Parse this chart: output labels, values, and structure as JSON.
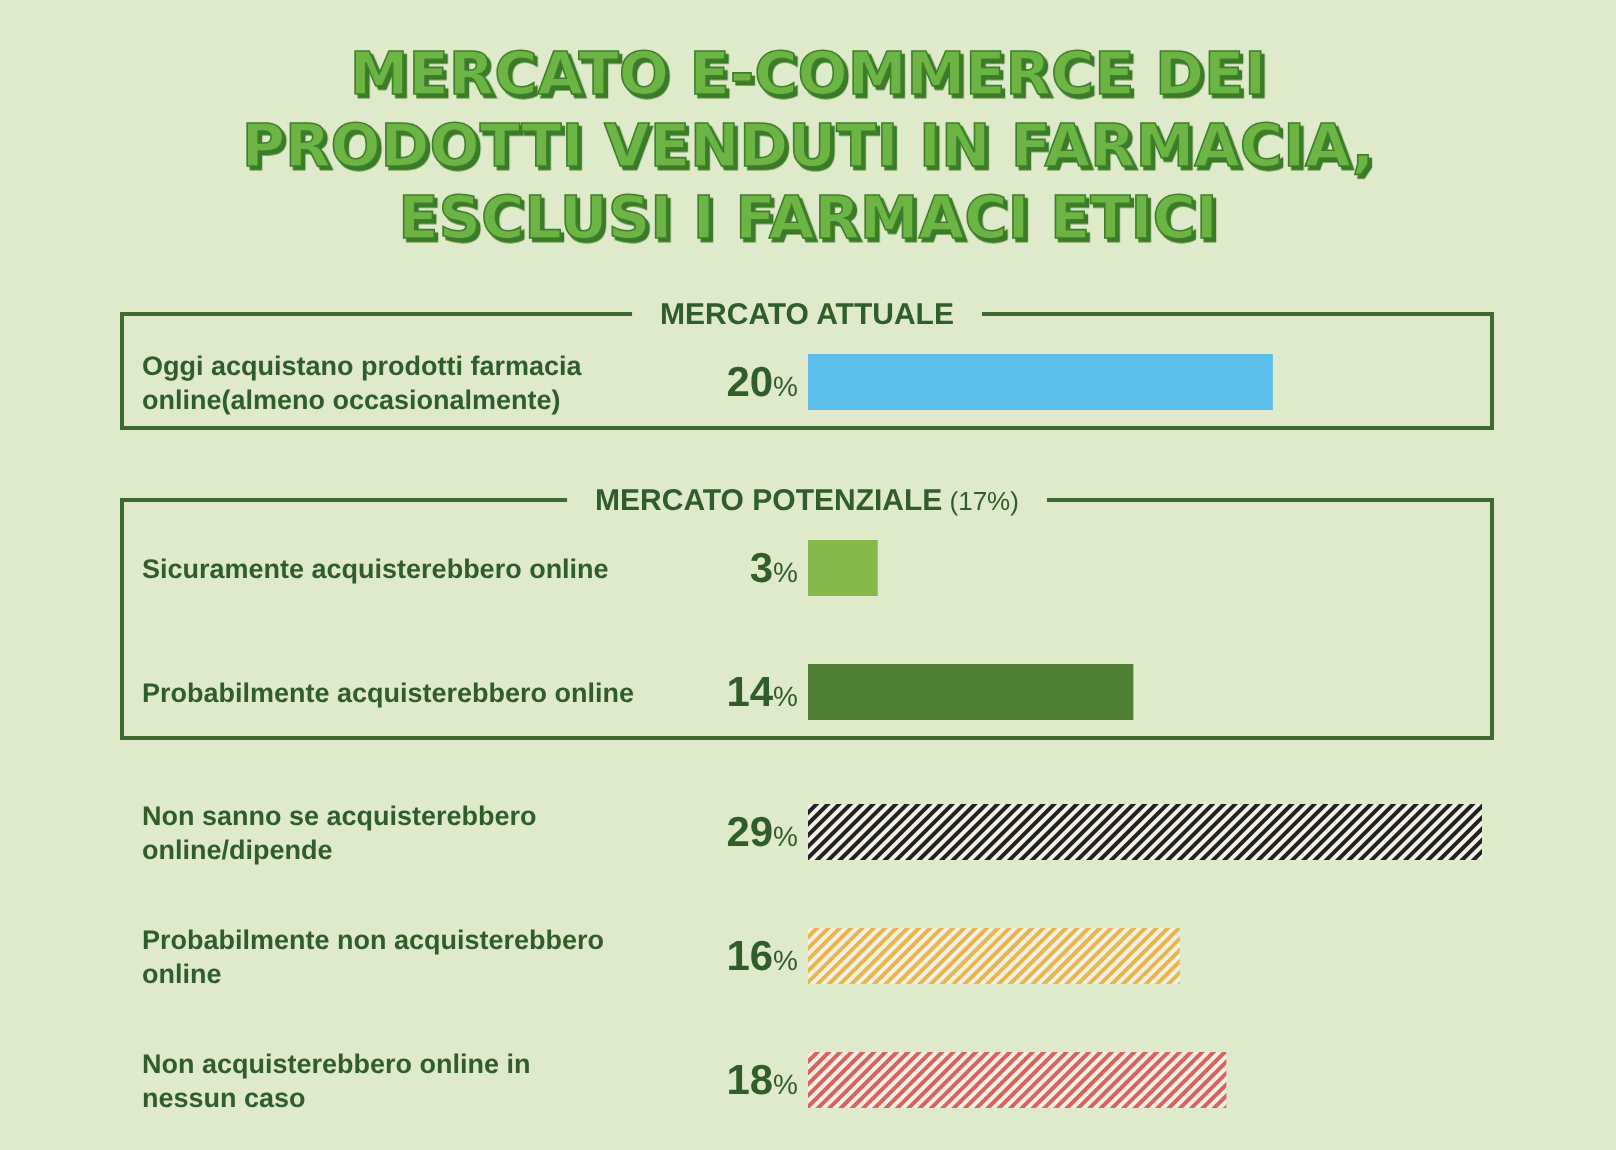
{
  "chart_data": {
    "type": "bar",
    "orientation": "horizontal",
    "title": "MERCATO E-COMMERCE DEI\nPRODOTTI VENDUTI IN FARMACIA,\nESCLUSI I FARMACI ETICI",
    "categories": [
      "Oggi acquistano prodotti farmacia\nonline(almeno occasionalmente)",
      "Sicuramente acquisterebbero online",
      "Probabilmente acquisterebbero online",
      "Non sanno se acquisterebbero\nonline/dipende",
      "Probabilmente non acquisterebbero\nonline",
      "Non acquisterebbero online in\nnessun caso"
    ],
    "values": [
      20,
      3,
      14,
      29,
      16,
      18
    ],
    "colors": [
      "#5bbde9",
      "#86b84c",
      "#4f7f35",
      "#222222",
      "#e8b64c",
      "#d8635d"
    ],
    "value_labels": [
      "20%",
      "3%",
      "14%",
      "29%",
      "16%",
      "18%"
    ],
    "annotations": [
      "MERCATO ATTUALE",
      "MERCATO POTENZIALE (17%)"
    ]
  }
}
